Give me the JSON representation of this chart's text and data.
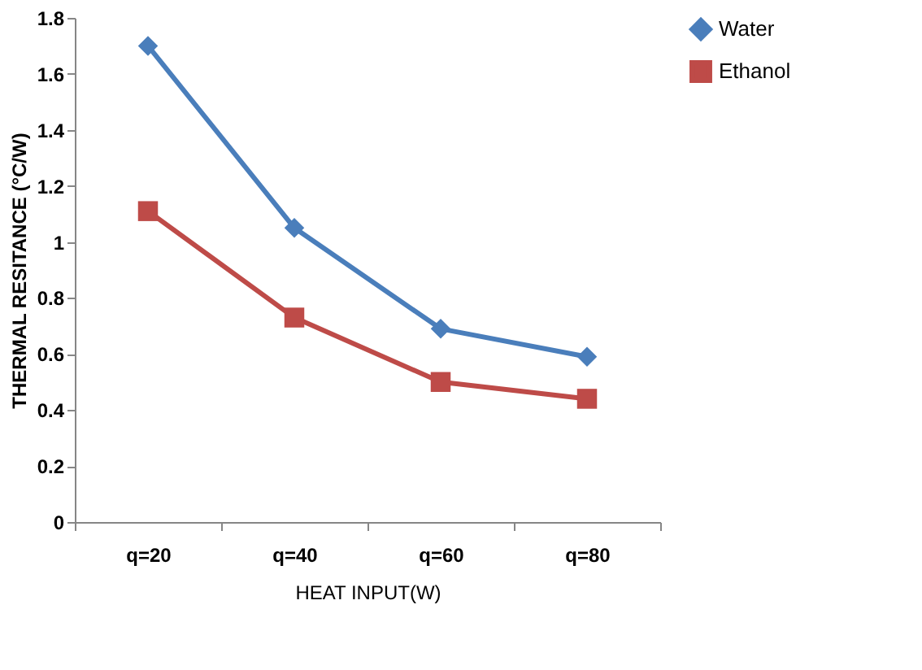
{
  "chart_data": {
    "type": "line",
    "xlabel": "HEAT INPUT(W)",
    "ylabel": "THERMAL RESITANCE (°C/W)",
    "categories": [
      "q=20",
      "q=40",
      "q=60",
      "q=80"
    ],
    "series": [
      {
        "name": "Water",
        "color": "#4a7ebb",
        "marker": "diamond",
        "values": [
          1.7,
          1.05,
          0.69,
          0.59
        ]
      },
      {
        "name": "Ethanol",
        "color": "#be4b48",
        "marker": "square",
        "values": [
          1.11,
          0.73,
          0.5,
          0.44
        ]
      }
    ],
    "ylim": [
      0,
      1.8
    ],
    "yticks": [
      0,
      0.2,
      0.4,
      0.6,
      0.8,
      1,
      1.2,
      1.4,
      1.6,
      1.8
    ],
    "grid": false,
    "legend": "right",
    "line_style": "solid"
  }
}
